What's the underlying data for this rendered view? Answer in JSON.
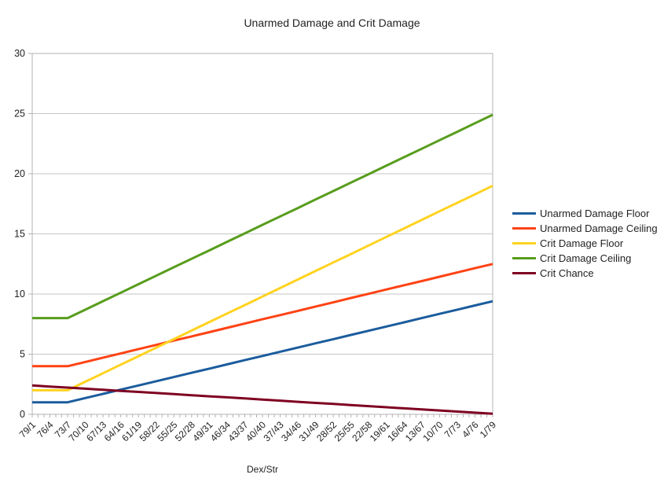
{
  "chart_data": {
    "type": "line",
    "title": "Unarmed Damage and Crit Damage",
    "xlabel": "Dex/Str",
    "ylabel": "",
    "ylim": [
      0,
      30
    ],
    "yticks": [
      0,
      5,
      10,
      15,
      20,
      25,
      30
    ],
    "grid": "horizontal",
    "legend_position": "right",
    "categories": [
      "79/1",
      "76/4",
      "73/7",
      "70/10",
      "67/13",
      "64/16",
      "61/19",
      "58/22",
      "55/25",
      "52/28",
      "49/31",
      "46/34",
      "43/37",
      "40/40",
      "37/43",
      "34/46",
      "31/49",
      "28/52",
      "25/55",
      "22/58",
      "19/61",
      "16/64",
      "13/67",
      "10/70",
      "7/73",
      "4/76",
      "1/79"
    ],
    "series": [
      {
        "name": "Unarmed Damage Floor",
        "color": "#1b5c9d",
        "values": [
          1,
          1,
          1,
          1.35,
          1.7,
          2.05,
          2.4,
          2.75,
          3.1,
          3.45,
          3.8,
          4.15,
          4.5,
          4.85,
          5.2,
          5.55,
          5.9,
          6.25,
          6.6,
          6.95,
          7.3,
          7.65,
          8,
          8.35,
          8.7,
          9.05,
          9.4
        ]
      },
      {
        "name": "Unarmed Damage Ceiling",
        "color": "#ff4214",
        "values": [
          4,
          4,
          4,
          4.35,
          4.71,
          5.06,
          5.42,
          5.77,
          6.13,
          6.48,
          6.83,
          7.19,
          7.54,
          7.9,
          8.25,
          8.6,
          8.96,
          9.31,
          9.67,
          10.02,
          10.38,
          10.73,
          11.08,
          11.44,
          11.79,
          12.15,
          12.5
        ]
      },
      {
        "name": "Crit Damage Floor",
        "color": "#ffd320",
        "values": [
          2,
          2,
          2,
          2.71,
          3.42,
          4.13,
          4.83,
          5.54,
          6.25,
          6.96,
          7.67,
          8.38,
          9.08,
          9.79,
          10.5,
          11.21,
          11.92,
          12.63,
          13.33,
          14.04,
          14.75,
          15.46,
          16.17,
          16.88,
          17.58,
          18.29,
          19
        ]
      },
      {
        "name": "Crit Damage Ceiling",
        "color": "#579d1c",
        "values": [
          8,
          8,
          8,
          8.7,
          9.41,
          10.11,
          10.82,
          11.52,
          12.23,
          12.93,
          13.63,
          14.34,
          15.04,
          15.75,
          16.45,
          17.15,
          17.86,
          18.56,
          19.27,
          19.97,
          20.68,
          21.38,
          22.08,
          22.79,
          23.49,
          24.2,
          24.9
        ]
      },
      {
        "name": "Crit Chance",
        "color": "#7e0021",
        "values": [
          2.4,
          2.31,
          2.22,
          2.13,
          2.04,
          1.95,
          1.86,
          1.77,
          1.68,
          1.59,
          1.5,
          1.41,
          1.32,
          1.23,
          1.14,
          1.04,
          0.95,
          0.86,
          0.77,
          0.68,
          0.59,
          0.5,
          0.41,
          0.32,
          0.23,
          0.14,
          0.05
        ]
      }
    ]
  },
  "colors": {
    "background": "#ffffff",
    "grid": "#c6c6c6",
    "axis": "#b3b3b3",
    "text": "#222222"
  }
}
